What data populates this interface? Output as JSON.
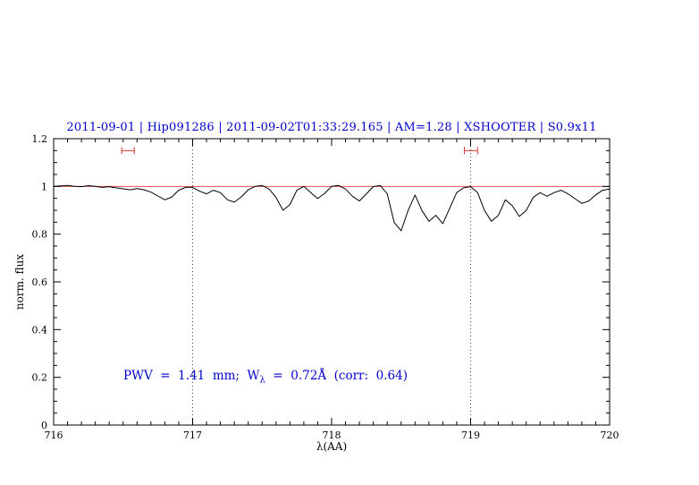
{
  "title": {
    "text": "2011-09-01 | Hip091286 | 2011-09-02T01:33:29.165 | AM=1.28 | XSHOOTER | S0.9x11",
    "color": "#0000cc"
  },
  "annotation": {
    "part1": "PWV  =  1.41  mm;  W",
    "sub": "λ",
    "part2": "  =  0.72Å  (corr:  0.64)",
    "color": "#0000cc"
  },
  "chart_data": {
    "type": "line",
    "title": "2011-09-01 | Hip091286 | 2011-09-02T01:33:29.165 | AM=1.28 | XSHOOTER | S0.9x11",
    "xlabel": "λ(AA)",
    "ylabel": "norm. flux",
    "xlim": [
      716,
      720
    ],
    "ylim": [
      0,
      1.2
    ],
    "x_ticks": [
      716,
      717,
      718,
      719,
      720
    ],
    "x_tick_labels": [
      "716",
      "717",
      "718",
      "719",
      "720"
    ],
    "x_minor_step": 0.1,
    "y_ticks": [
      0,
      0.2,
      0.4,
      0.6,
      0.8,
      1,
      1.2
    ],
    "y_tick_labels": [
      "0",
      "0.2",
      "0.4",
      "0.6",
      "0.8",
      "1",
      "1.2"
    ],
    "y_minor_step": 0.05,
    "grid": false,
    "legend": "none",
    "continuum_line": {
      "y": 1.0,
      "color": "#dd3333"
    },
    "vlines": [
      {
        "x": 717
      },
      {
        "x": 719
      }
    ],
    "vline_color": "#444444",
    "range_markers": [
      {
        "x1": 716.49,
        "x2": 716.58,
        "y": 1.15
      },
      {
        "x1": 718.955,
        "x2": 719.05,
        "y": 1.15
      }
    ],
    "marker_color": "#dd3333",
    "series": [
      {
        "name": "spectrum",
        "color": "#000000",
        "x": [
          716.0,
          716.05,
          716.1,
          716.15,
          716.2,
          716.25,
          716.3,
          716.35,
          716.4,
          716.45,
          716.5,
          716.55,
          716.6,
          716.65,
          716.7,
          716.75,
          716.8,
          716.85,
          716.9,
          716.95,
          717.0,
          717.05,
          717.1,
          717.15,
          717.2,
          717.25,
          717.3,
          717.35,
          717.4,
          717.45,
          717.5,
          717.55,
          717.6,
          717.65,
          717.7,
          717.75,
          717.8,
          717.85,
          717.9,
          717.95,
          718.0,
          718.05,
          718.1,
          718.15,
          718.2,
          718.25,
          718.3,
          718.35,
          718.4,
          718.45,
          718.5,
          718.55,
          718.6,
          718.65,
          718.7,
          718.75,
          718.8,
          718.85,
          718.9,
          718.95,
          719.0,
          719.05,
          719.1,
          719.15,
          719.2,
          719.25,
          719.3,
          719.35,
          719.4,
          719.45,
          719.5,
          719.55,
          719.6,
          719.65,
          719.7,
          719.75,
          719.8,
          719.85,
          719.9,
          719.95,
          720.0
        ],
        "y": [
          1.0,
          1.002,
          1.004,
          1.0,
          0.999,
          1.003,
          1.0,
          0.996,
          0.999,
          0.994,
          0.99,
          0.986,
          0.991,
          0.986,
          0.976,
          0.96,
          0.944,
          0.956,
          0.984,
          0.996,
          0.996,
          0.98,
          0.969,
          0.984,
          0.974,
          0.944,
          0.934,
          0.956,
          0.986,
          1.0,
          1.004,
          0.989,
          0.954,
          0.9,
          0.924,
          0.984,
          1.0,
          0.974,
          0.949,
          0.971,
          1.0,
          1.004,
          0.989,
          0.959,
          0.939,
          0.969,
          0.999,
          1.004,
          0.969,
          0.849,
          0.814,
          0.899,
          0.964,
          0.899,
          0.854,
          0.879,
          0.844,
          0.909,
          0.974,
          0.994,
          0.999,
          0.974,
          0.899,
          0.854,
          0.879,
          0.944,
          0.919,
          0.874,
          0.899,
          0.954,
          0.974,
          0.959,
          0.974,
          0.984,
          0.969,
          0.949,
          0.929,
          0.939,
          0.964,
          0.984,
          0.989
        ]
      }
    ]
  }
}
